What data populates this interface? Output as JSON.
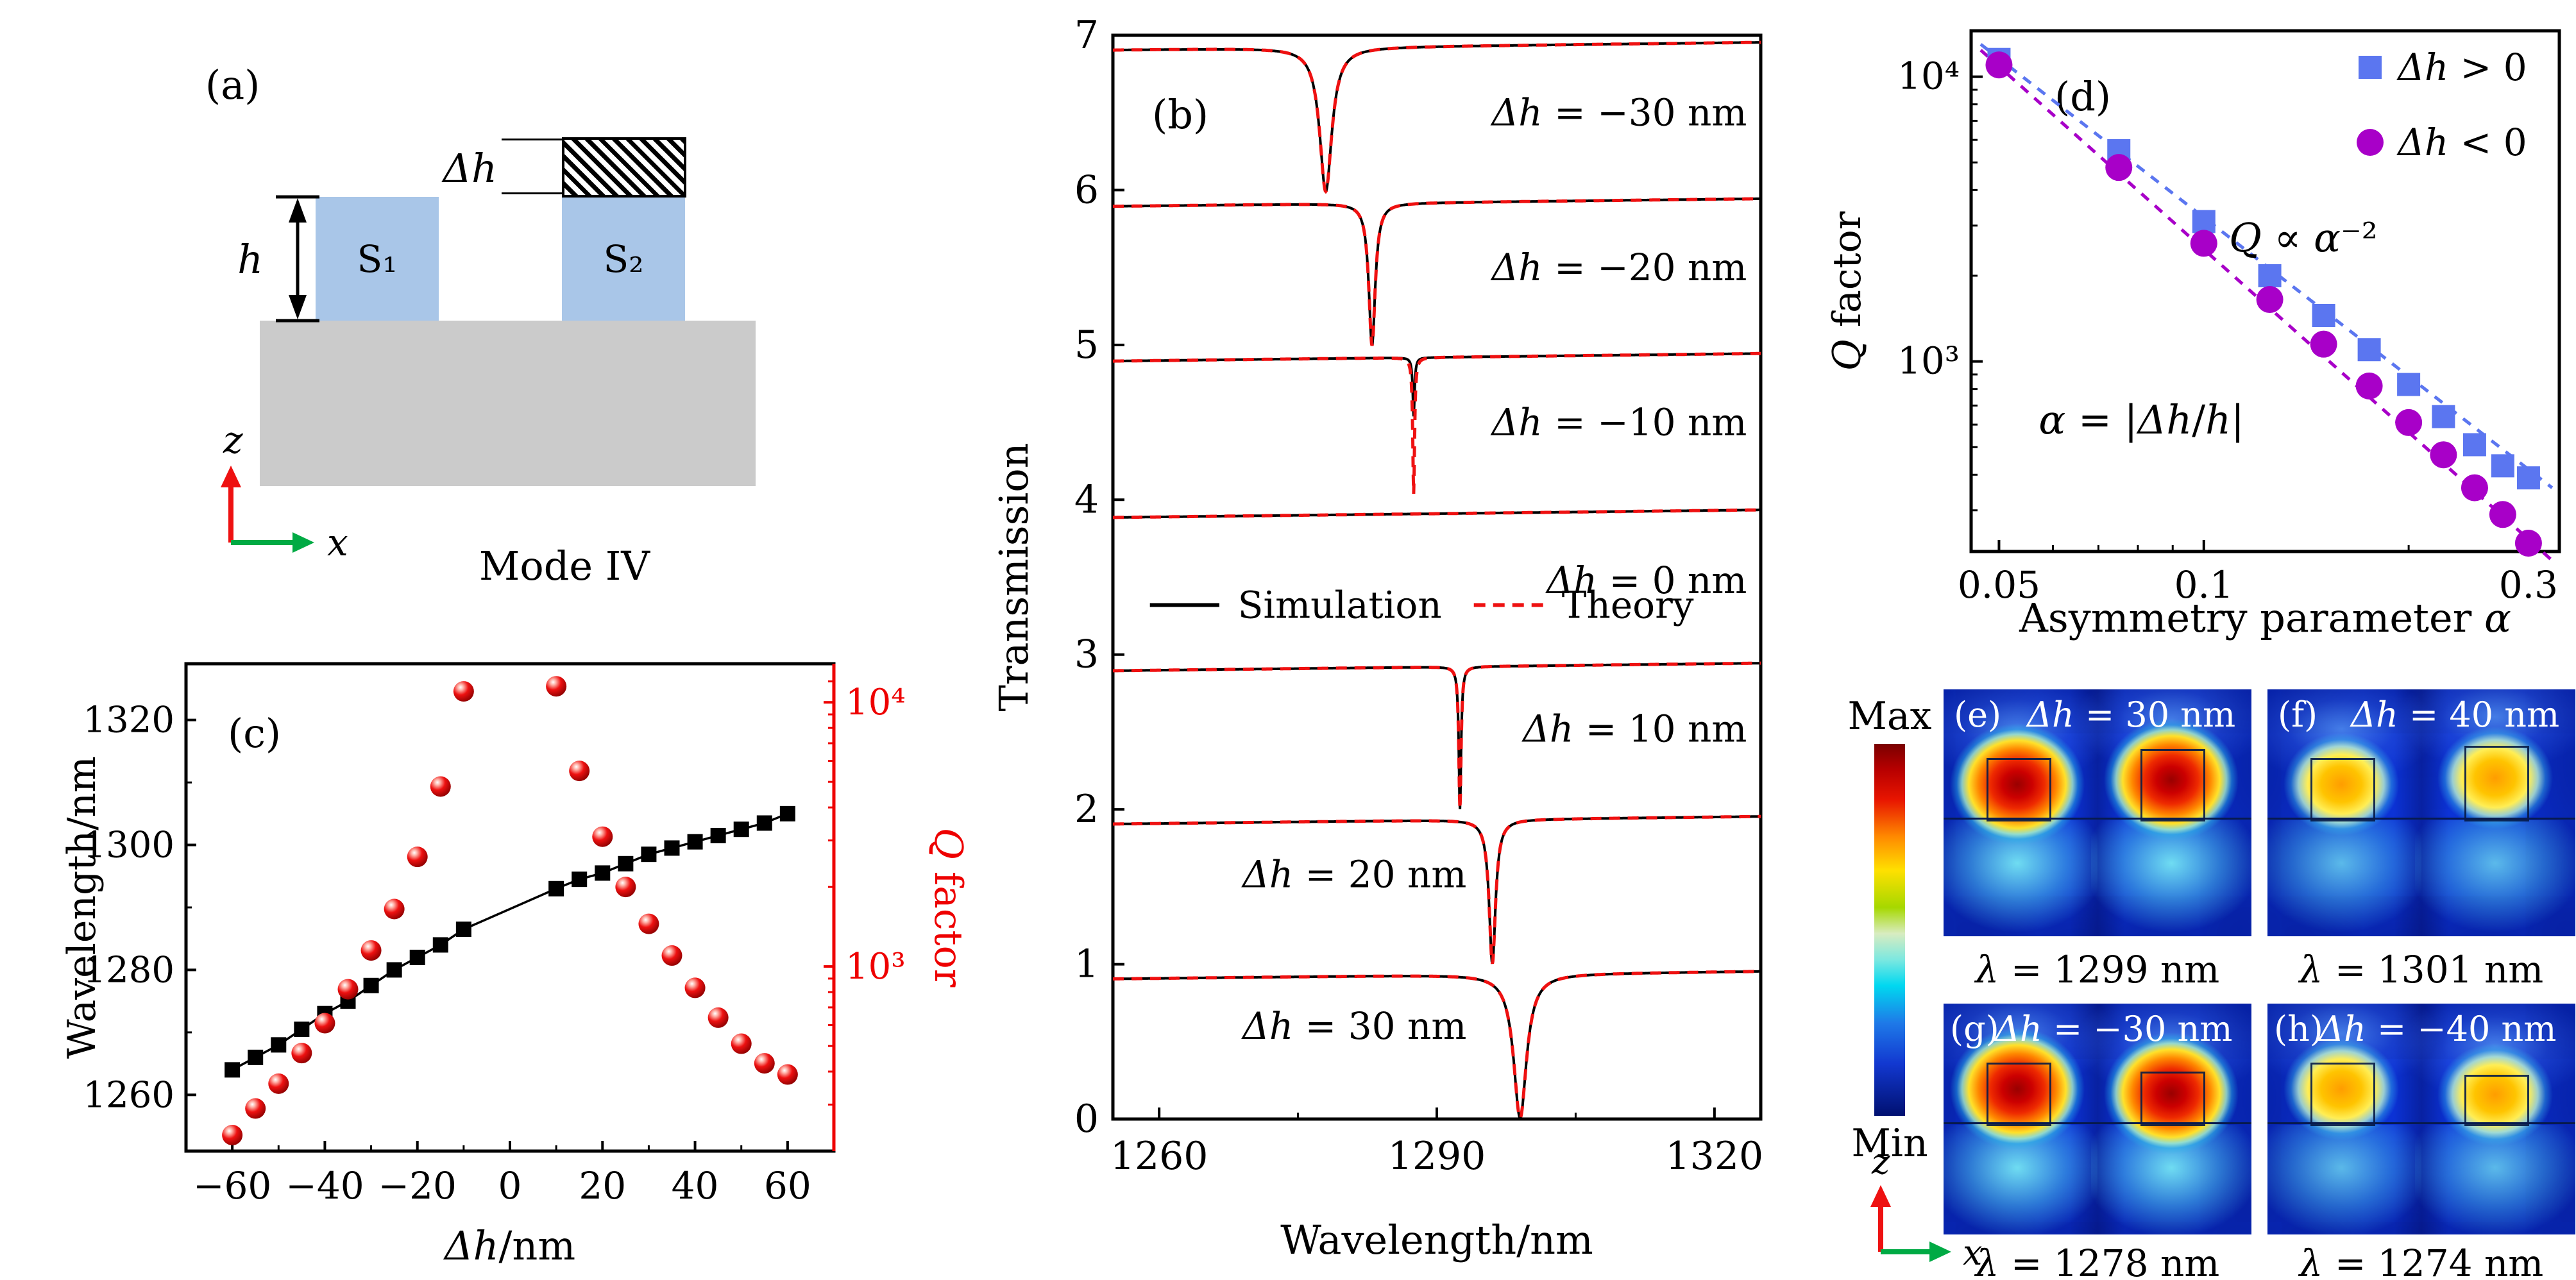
{
  "panel_a": {
    "label": "(a)",
    "s1": "S₁",
    "s2": "S₂",
    "h_label": "h",
    "dh_label": "Δh",
    "mode_label": "Mode IV",
    "axis_z": "z",
    "axis_x": "x",
    "colors": {
      "pillar": "#a9c6e8",
      "substrate": "#cbcbcb",
      "z_arrow": "#ee1111",
      "x_arrow": "#00aa44"
    }
  },
  "colorbar": {
    "max": "Max",
    "min": "Min"
  },
  "mode_axes": {
    "z": "z",
    "x": "x"
  },
  "modes": [
    {
      "letter": "(e)",
      "dh_var": "Δh",
      "dh_rest": " = 30 nm",
      "cap_var": "λ",
      "cap_rest": " = 1299 nm"
    },
    {
      "letter": "(f)",
      "dh_var": "Δh",
      "dh_rest": " = 40 nm",
      "cap_var": "λ",
      "cap_rest": " = 1301 nm"
    },
    {
      "letter": "(g)",
      "dh_var": "Δh",
      "dh_rest": " = −30 nm",
      "cap_var": "λ",
      "cap_rest": " = 1278 nm"
    },
    {
      "letter": "(h)",
      "dh_var": "Δh",
      "dh_rest": " = −40 nm",
      "cap_var": "λ",
      "cap_rest": " = 1274 nm"
    }
  ],
  "chart_data": [
    {
      "panel": "b",
      "type": "line",
      "title_parts": [
        {
          "t": "(b)",
          "i": false
        }
      ],
      "xlabel_parts": [
        {
          "t": "Wavelength/nm",
          "i": false
        }
      ],
      "ylabel_parts": [
        {
          "t": "Transmission",
          "i": false
        }
      ],
      "xlim": [
        1255,
        1325
      ],
      "ylim": [
        0,
        7
      ],
      "xticks": [
        1260,
        1290,
        1320
      ],
      "xtick_labels": [
        "1260",
        "1290",
        "1320"
      ],
      "xminor": [
        1275,
        1305
      ],
      "yticks": [
        0,
        1,
        2,
        3,
        4,
        5,
        6,
        7
      ],
      "sim_color": "#000000",
      "theory_color": "#ee1111",
      "baseline_slope": 0.0007,
      "legend": {
        "sim_parts": [
          {
            "t": "Simulation",
            "i": false
          }
        ],
        "theory_parts": [
          {
            "t": "Theory",
            "i": false
          }
        ],
        "y": 3.32,
        "line_x": [
          1259,
          1266.5
        ],
        "sim_text_x": 1268.5,
        "dash_x": [
          1294,
          1301.5
        ],
        "theory_text_x": 1303.5
      },
      "spectra": [
        {
          "dh": -30,
          "label_parts": [
            {
              "t": "Δh",
              "i": true
            },
            {
              "t": " = −30 nm",
              "i": false
            }
          ],
          "base": 6.93,
          "center": 1278,
          "depth_sim": 0.93,
          "depth_theory": 0.93,
          "width": 0.8,
          "label_x": 1323.5,
          "label_y": 6.5,
          "anchor": "end"
        },
        {
          "dh": -20,
          "label_parts": [
            {
              "t": "Δh",
              "i": true
            },
            {
              "t": " = −20 nm",
              "i": false
            }
          ],
          "base": 5.92,
          "center": 1283,
          "depth_sim": 0.92,
          "depth_theory": 0.92,
          "width": 0.42,
          "label_x": 1323.5,
          "label_y": 5.5,
          "anchor": "end"
        },
        {
          "dh": -10,
          "label_parts": [
            {
              "t": "Δh",
              "i": true
            },
            {
              "t": " = −10 nm",
              "i": false
            }
          ],
          "base": 4.92,
          "center": 1287.5,
          "depth_sim": 0.38,
          "depth_theory": 0.88,
          "width": 0.12,
          "label_x": 1323.5,
          "label_y": 4.5,
          "anchor": "end"
        },
        {
          "dh": 0,
          "label_parts": [
            {
              "t": "Δh",
              "i": true
            },
            {
              "t": " = 0 nm",
              "i": false
            }
          ],
          "base": 3.91,
          "center": null,
          "depth_sim": 0,
          "depth_theory": 0,
          "width": 1,
          "label_x": 1323.5,
          "label_y": 3.48,
          "anchor": "end"
        },
        {
          "dh": 10,
          "label_parts": [
            {
              "t": "Δh",
              "i": true
            },
            {
              "t": " = 10 nm",
              "i": false
            }
          ],
          "base": 2.92,
          "center": 1292.5,
          "depth_sim": 0.92,
          "depth_theory": 0.92,
          "width": 0.15,
          "label_x": 1323.5,
          "label_y": 2.52,
          "anchor": "end"
        },
        {
          "dh": 20,
          "label_parts": [
            {
              "t": "Δh",
              "i": true
            },
            {
              "t": " = 20 nm",
              "i": false
            }
          ],
          "base": 1.93,
          "center": 1296,
          "depth_sim": 0.93,
          "depth_theory": 0.93,
          "width": 0.42,
          "label_x": 1269,
          "label_y": 1.58,
          "anchor": "start"
        },
        {
          "dh": 30,
          "label_parts": [
            {
              "t": "Δh",
              "i": true
            },
            {
              "t": " = 30 nm",
              "i": false
            }
          ],
          "base": 0.93,
          "center": 1299,
          "depth_sim": 0.93,
          "depth_theory": 0.93,
          "width": 0.85,
          "label_x": 1269,
          "label_y": 0.6,
          "anchor": "start"
        }
      ]
    },
    {
      "panel": "c",
      "type": "scatter",
      "title_parts": [
        {
          "t": "(c)",
          "i": false
        }
      ],
      "xlabel_parts": [
        {
          "t": "Δh",
          "i": true
        },
        {
          "t": "/nm",
          "i": false
        }
      ],
      "ylabel_left_parts": [
        {
          "t": "Wavelength/nm",
          "i": false
        }
      ],
      "ylabel_right_parts": [
        {
          "t": "Q",
          "i": true
        },
        {
          "t": " factor",
          "i": false
        }
      ],
      "xlim": [
        -70,
        70
      ],
      "xticks": [
        -60,
        -40,
        -20,
        0,
        20,
        40,
        60
      ],
      "xtick_labels": [
        "−60",
        "−40",
        "−20",
        "0",
        "20",
        "40",
        "60"
      ],
      "xminor": [
        -50,
        -30,
        -10,
        10,
        30,
        50
      ],
      "ylim_left": [
        1251,
        1329
      ],
      "yticks_left": [
        1260,
        1280,
        1300,
        1320
      ],
      "ytick_left_labels": [
        "1260",
        "1280",
        "1300",
        "1320"
      ],
      "yminor_left": [
        1270,
        1290,
        1310
      ],
      "ylim_right": [
        200,
        14000
      ],
      "yticks_right": [
        1000,
        10000
      ],
      "ytick_right_labels": [
        "10³",
        "10⁴"
      ],
      "right_color": "#ee0000",
      "wavelength_color": "#000000",
      "dh": [
        -60,
        -55,
        -50,
        -45,
        -40,
        -35,
        -30,
        -25,
        -20,
        -15,
        -10,
        10,
        15,
        20,
        25,
        30,
        35,
        40,
        45,
        50,
        55,
        60
      ],
      "wavelength": [
        1264,
        1266,
        1268,
        1270.5,
        1273,
        1275,
        1277.5,
        1280,
        1282,
        1284,
        1286.5,
        1293,
        1294.5,
        1295.5,
        1297,
        1298.5,
        1299.5,
        1300.5,
        1301.5,
        1302.5,
        1303.5,
        1305
      ],
      "q": [
        230,
        290,
        360,
        470,
        610,
        820,
        1150,
        1650,
        2600,
        4800,
        11000,
        11500,
        5500,
        3100,
        2000,
        1450,
        1100,
        830,
        640,
        510,
        430,
        390
      ]
    },
    {
      "panel": "d",
      "type": "scatter-loglog",
      "title_parts": [
        {
          "t": "(d)",
          "i": false
        }
      ],
      "xlabel_parts": [
        {
          "t": "Asymmetry parameter ",
          "i": false
        },
        {
          "t": "α",
          "i": true
        }
      ],
      "ylabel_parts": [
        {
          "t": "Q",
          "i": true
        },
        {
          "t": " factor",
          "i": false
        }
      ],
      "xlim": [
        0.0455,
        0.333
      ],
      "xticks": [
        0.05,
        0.1,
        0.3
      ],
      "xtick_labels": [
        "0.05",
        "0.1",
        "0.3"
      ],
      "xminor": [
        0.06,
        0.07,
        0.08,
        0.09,
        0.2
      ],
      "ylim": [
        215,
        14500
      ],
      "yticks": [
        1000,
        10000
      ],
      "ytick_labels": [
        "10³",
        "10⁴"
      ],
      "yminor": [
        300,
        400,
        500,
        600,
        700,
        800,
        900,
        2000,
        3000,
        4000,
        5000,
        6000,
        7000,
        8000,
        9000
      ],
      "alpha": [
        0.05,
        0.075,
        0.1,
        0.125,
        0.15,
        0.175,
        0.2,
        0.225,
        0.25,
        0.275,
        0.3
      ],
      "series": [
        {
          "label_parts": [
            {
              "t": "Δh",
              "i": true
            },
            {
              "t": " > 0",
              "i": false
            }
          ],
          "color": "#5b76f0",
          "marker": "square",
          "q": [
            11500,
            5500,
            3100,
            2000,
            1450,
            1100,
            830,
            640,
            510,
            430,
            390
          ]
        },
        {
          "label_parts": [
            {
              "t": "Δh",
              "i": true
            },
            {
              "t": " < 0",
              "i": false
            }
          ],
          "color": "#a800c8",
          "marker": "circle",
          "q": [
            11000,
            4800,
            2600,
            1650,
            1150,
            820,
            610,
            470,
            360,
            290,
            230
          ]
        }
      ],
      "fit_lines": [
        {
          "color": "#5b76f0",
          "p1": [
            0.047,
            13000
          ],
          "p2": [
            0.325,
            360
          ]
        },
        {
          "color": "#a800c8",
          "p1": [
            0.047,
            12400
          ],
          "p2": [
            0.325,
            200
          ]
        }
      ],
      "annotations": [
        {
          "parts": [
            {
              "t": "Q",
              "i": true
            },
            {
              "t": " ∝ ",
              "i": false
            },
            {
              "t": "α",
              "i": true
            },
            {
              "t": "⁻²",
              "i": false
            }
          ],
          "x": 0.14,
          "q": 2700
        },
        {
          "parts": [
            {
              "t": "α",
              "i": true
            },
            {
              "t": " = |",
              "i": false
            },
            {
              "t": "Δh",
              "i": true
            },
            {
              "t": "/",
              "i": false
            },
            {
              "t": "h",
              "i": true
            },
            {
              "t": "|",
              "i": false
            }
          ],
          "x": 0.081,
          "q": 620
        }
      ]
    }
  ]
}
